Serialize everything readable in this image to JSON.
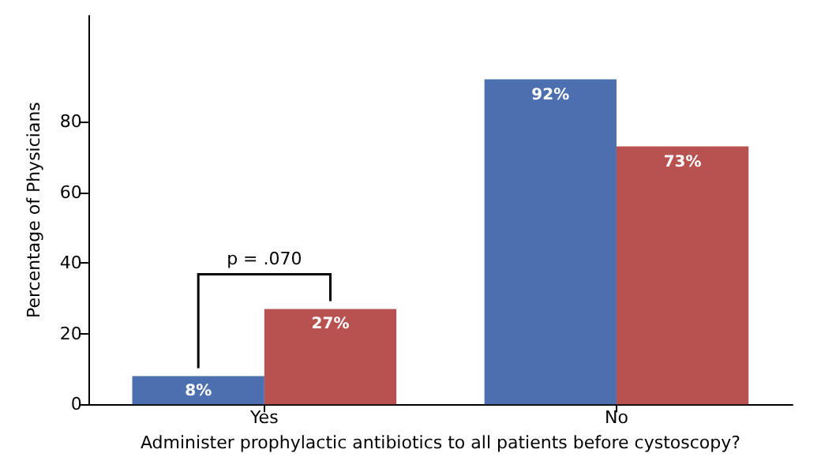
{
  "chart_data": {
    "type": "bar",
    "ylabel": "Percentage of Physicians",
    "xlabel": "Administer prophylactic antibiotics to all patients before cystoscopy?",
    "categories": [
      "Yes",
      "No"
    ],
    "series": [
      {
        "color": "#4c6fb0",
        "values": [
          8,
          92
        ],
        "value_labels": [
          "8%",
          "92%"
        ]
      },
      {
        "color": "#b85250",
        "values": [
          27,
          73
        ],
        "value_labels": [
          "27%",
          "73%"
        ]
      }
    ],
    "ylim": [
      0,
      110
    ],
    "yticks": [
      0,
      20,
      40,
      60,
      80
    ],
    "grid": false,
    "annotations": [
      "p = .070"
    ]
  }
}
